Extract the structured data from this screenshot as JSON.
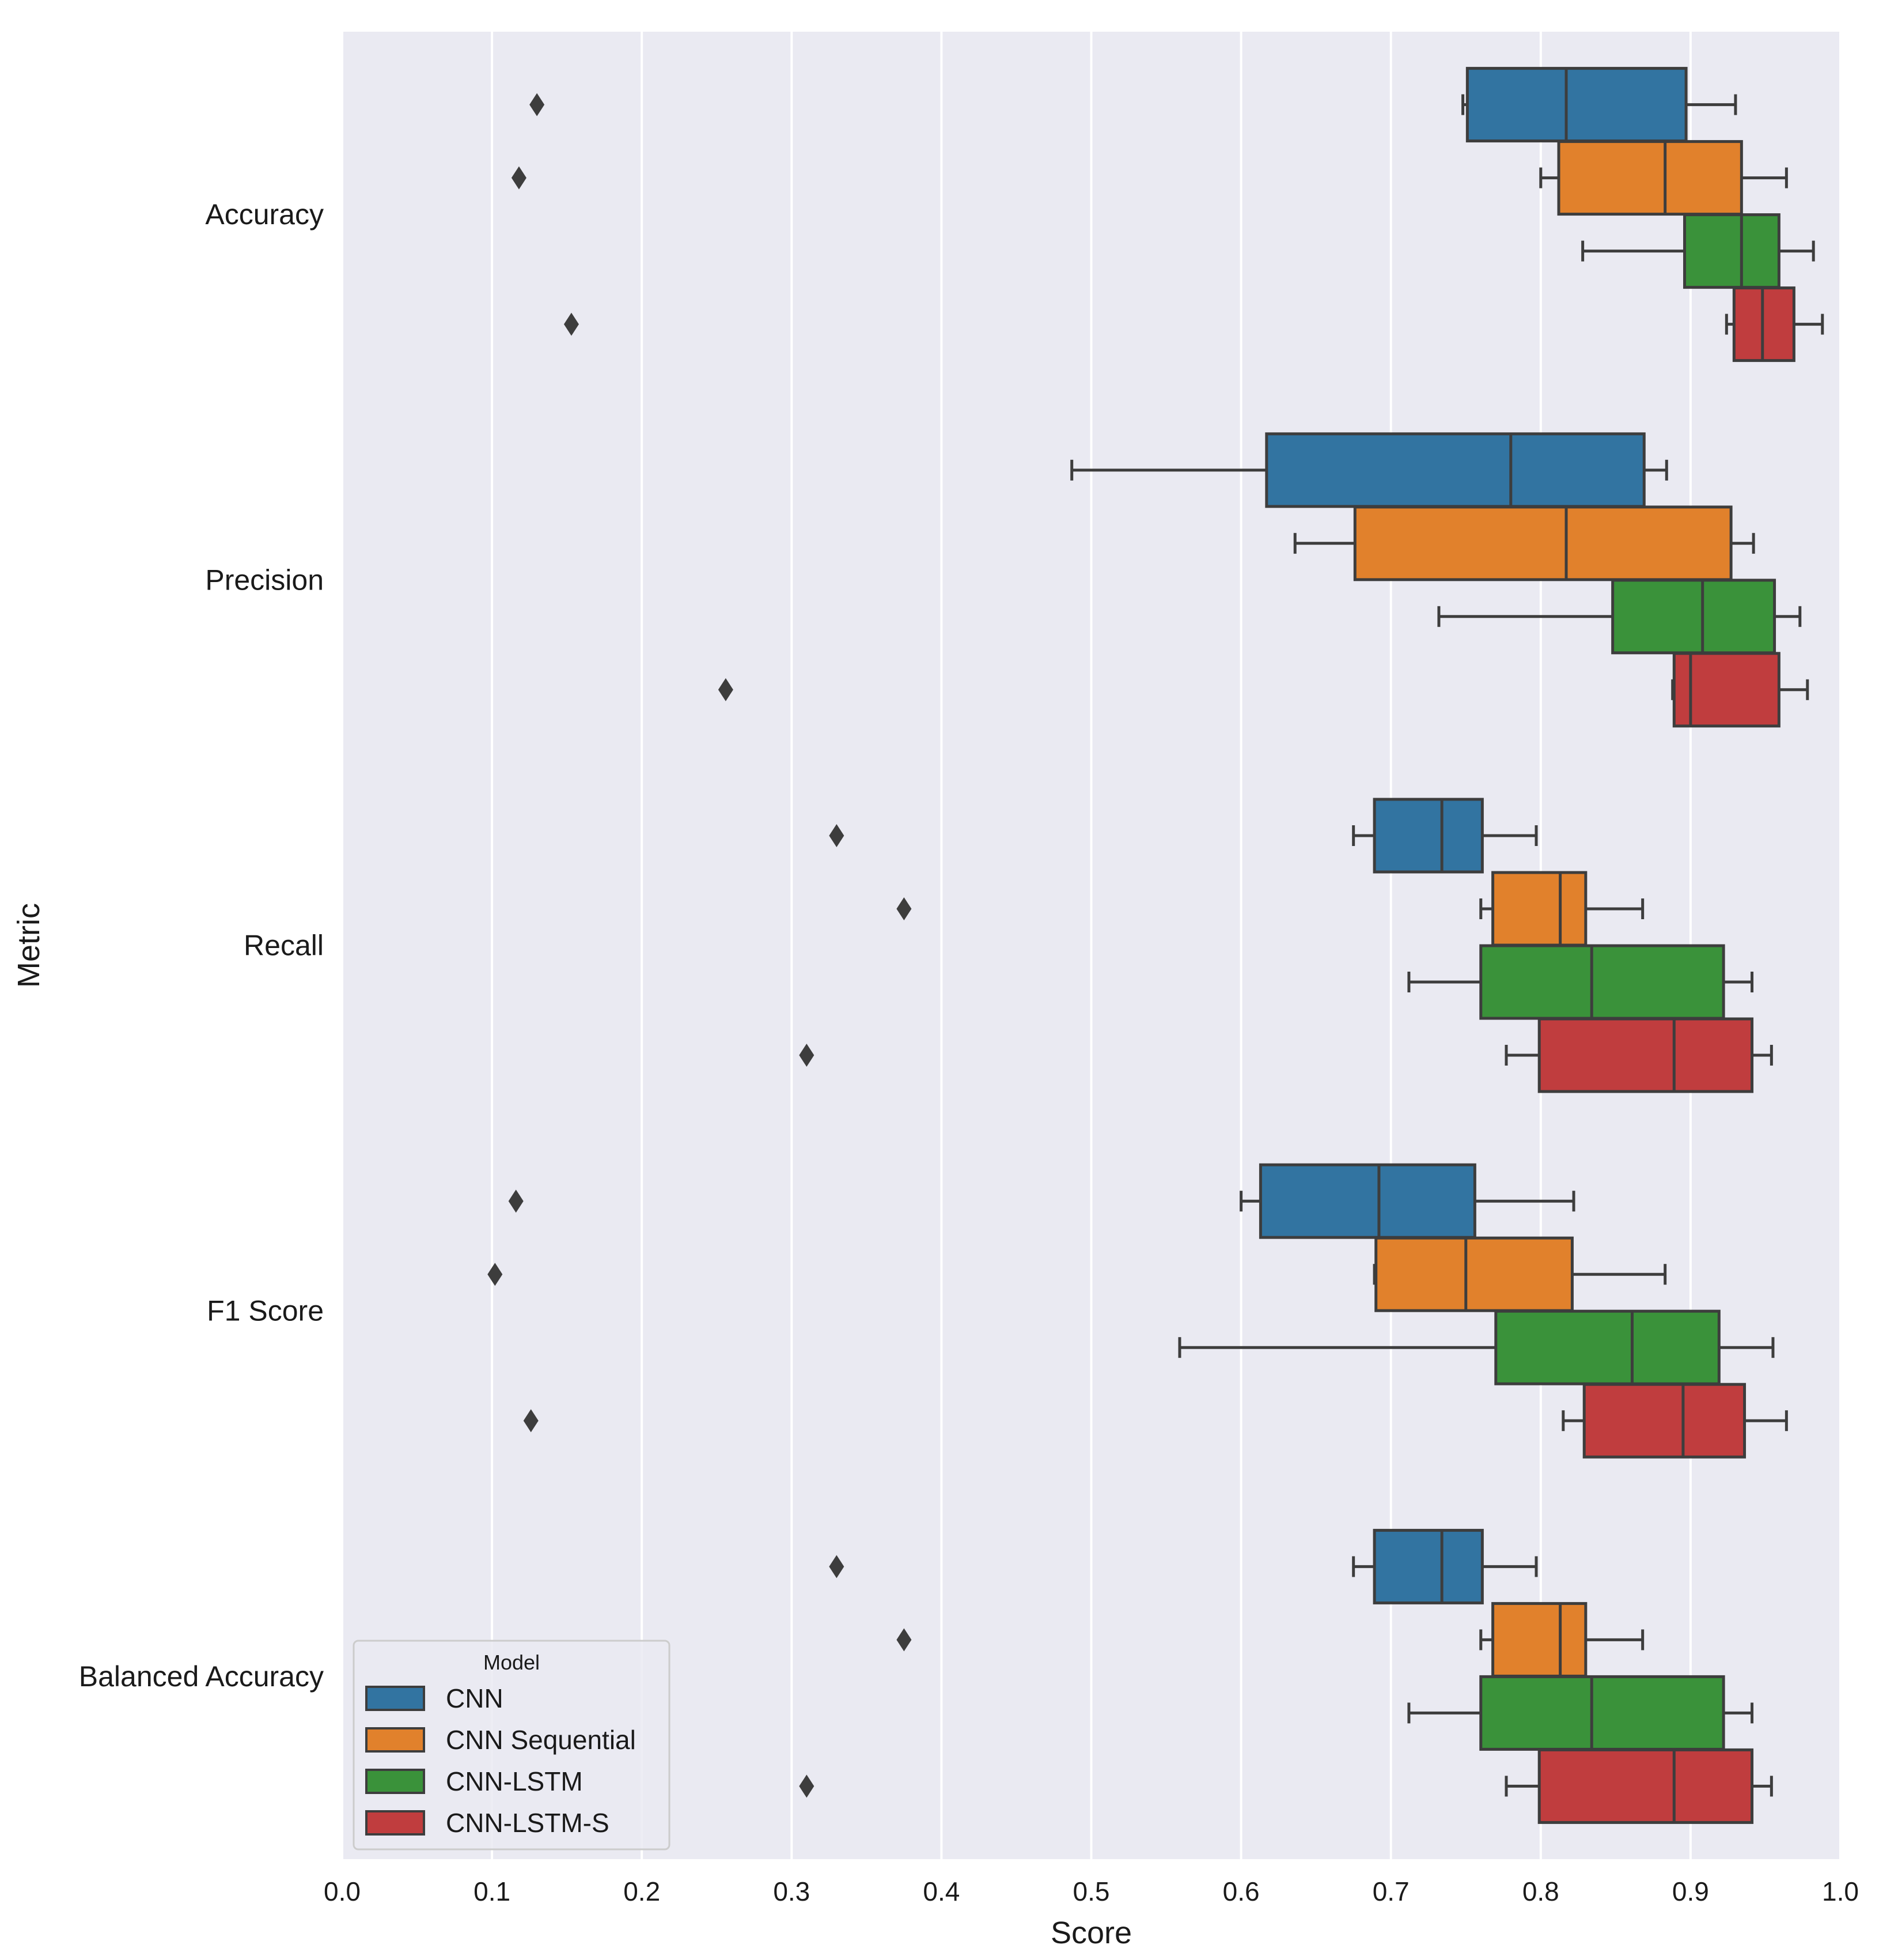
{
  "chart_data": {
    "type": "boxplot-horizontal",
    "title": "",
    "xlabel": "Score",
    "ylabel": "Metric",
    "xlim": [
      0.0,
      1.0
    ],
    "xticks": [
      "0.0",
      "0.1",
      "0.2",
      "0.3",
      "0.4",
      "0.5",
      "0.6",
      "0.7",
      "0.8",
      "0.9",
      "1.0"
    ],
    "grid": true,
    "categories": [
      "Accuracy",
      "Precision",
      "Recall",
      "F1 Score",
      "Balanced Accuracy"
    ],
    "legend": {
      "title": "Model",
      "placement": "lower-left",
      "entries": [
        "CNN",
        "CNN Sequential",
        "CNN-LSTM",
        "CNN-LSTM-S"
      ]
    },
    "series": [
      {
        "name": "CNN",
        "color": "#3274a1",
        "boxes": [
          {
            "whislo": 0.748,
            "q1": 0.751,
            "med": 0.817,
            "q3": 0.897,
            "whishi": 0.93,
            "fliers": [
              0.13
            ]
          },
          {
            "whislo": 0.487,
            "q1": 0.617,
            "med": 0.78,
            "q3": 0.869,
            "whishi": 0.884,
            "fliers": []
          },
          {
            "whislo": 0.675,
            "q1": 0.689,
            "med": 0.734,
            "q3": 0.761,
            "whishi": 0.797,
            "fliers": [
              0.33
            ]
          },
          {
            "whislo": 0.6,
            "q1": 0.613,
            "med": 0.692,
            "q3": 0.756,
            "whishi": 0.822,
            "fliers": [
              0.116
            ]
          },
          {
            "whislo": 0.675,
            "q1": 0.689,
            "med": 0.734,
            "q3": 0.761,
            "whishi": 0.797,
            "fliers": [
              0.33
            ]
          }
        ]
      },
      {
        "name": "CNN Sequential",
        "color": "#e1812c",
        "boxes": [
          {
            "whislo": 0.8,
            "q1": 0.812,
            "med": 0.883,
            "q3": 0.934,
            "whishi": 0.964,
            "fliers": [
              0.118
            ]
          },
          {
            "whislo": 0.636,
            "q1": 0.676,
            "med": 0.817,
            "q3": 0.927,
            "whishi": 0.942,
            "fliers": []
          },
          {
            "whislo": 0.76,
            "q1": 0.768,
            "med": 0.813,
            "q3": 0.83,
            "whishi": 0.868,
            "fliers": [
              0.375
            ]
          },
          {
            "whislo": 0.689,
            "q1": 0.69,
            "med": 0.75,
            "q3": 0.821,
            "whishi": 0.883,
            "fliers": [
              0.102
            ]
          },
          {
            "whislo": 0.76,
            "q1": 0.768,
            "med": 0.813,
            "q3": 0.83,
            "whishi": 0.868,
            "fliers": [
              0.375
            ]
          }
        ]
      },
      {
        "name": "CNN-LSTM",
        "color": "#3a923a",
        "boxes": [
          {
            "whislo": 0.828,
            "q1": 0.896,
            "med": 0.934,
            "q3": 0.959,
            "whishi": 0.982,
            "fliers": []
          },
          {
            "whislo": 0.732,
            "q1": 0.848,
            "med": 0.908,
            "q3": 0.956,
            "whishi": 0.973,
            "fliers": []
          },
          {
            "whislo": 0.712,
            "q1": 0.76,
            "med": 0.834,
            "q3": 0.922,
            "whishi": 0.941,
            "fliers": []
          },
          {
            "whislo": 0.559,
            "q1": 0.77,
            "med": 0.861,
            "q3": 0.919,
            "whishi": 0.955,
            "fliers": []
          },
          {
            "whislo": 0.712,
            "q1": 0.76,
            "med": 0.834,
            "q3": 0.922,
            "whishi": 0.941,
            "fliers": []
          }
        ]
      },
      {
        "name": "CNN-LSTM-S",
        "color": "#c03d3e",
        "boxes": [
          {
            "whislo": 0.924,
            "q1": 0.929,
            "med": 0.948,
            "q3": 0.969,
            "whishi": 0.988,
            "fliers": [
              0.153
            ]
          },
          {
            "whislo": 0.888,
            "q1": 0.889,
            "med": 0.9,
            "q3": 0.959,
            "whishi": 0.978,
            "fliers": [
              0.256
            ]
          },
          {
            "whislo": 0.777,
            "q1": 0.799,
            "med": 0.889,
            "q3": 0.941,
            "whishi": 0.954,
            "fliers": [
              0.31
            ]
          },
          {
            "whislo": 0.815,
            "q1": 0.829,
            "med": 0.895,
            "q3": 0.936,
            "whishi": 0.964,
            "fliers": [
              0.126
            ]
          },
          {
            "whislo": 0.777,
            "q1": 0.799,
            "med": 0.889,
            "q3": 0.941,
            "whishi": 0.954,
            "fliers": [
              0.31
            ]
          }
        ]
      }
    ]
  }
}
